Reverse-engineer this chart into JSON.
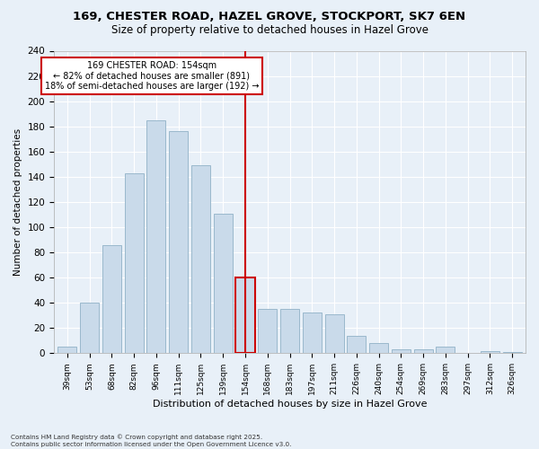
{
  "title1": "169, CHESTER ROAD, HAZEL GROVE, STOCKPORT, SK7 6EN",
  "title2": "Size of property relative to detached houses in Hazel Grove",
  "xlabel": "Distribution of detached houses by size in Hazel Grove",
  "ylabel": "Number of detached properties",
  "categories": [
    "39sqm",
    "53sqm",
    "68sqm",
    "82sqm",
    "96sqm",
    "111sqm",
    "125sqm",
    "139sqm",
    "154sqm",
    "168sqm",
    "183sqm",
    "197sqm",
    "211sqm",
    "226sqm",
    "240sqm",
    "254sqm",
    "269sqm",
    "283sqm",
    "297sqm",
    "312sqm",
    "326sqm"
  ],
  "values": [
    5,
    40,
    86,
    143,
    185,
    176,
    149,
    111,
    60,
    35,
    35,
    32,
    31,
    14,
    8,
    3,
    3,
    5,
    0,
    2,
    1
  ],
  "bar_color": "#c9daea",
  "bar_edge_color": "#9ab8cc",
  "highlight_index": 8,
  "highlight_color": "#cc0000",
  "ylim": [
    0,
    240
  ],
  "yticks": [
    0,
    20,
    40,
    60,
    80,
    100,
    120,
    140,
    160,
    180,
    200,
    220,
    240
  ],
  "annotation_title": "169 CHESTER ROAD: 154sqm",
  "annotation_line1": "← 82% of detached houses are smaller (891)",
  "annotation_line2": "18% of semi-detached houses are larger (192) →",
  "footnote1": "Contains HM Land Registry data © Crown copyright and database right 2025.",
  "footnote2": "Contains public sector information licensed under the Open Government Licence v3.0.",
  "bg_color": "#e8f0f8",
  "plot_bg_color": "#e8f0f8",
  "grid_color": "#ffffff",
  "title_fontsize": 9.5,
  "subtitle_fontsize": 8.5
}
